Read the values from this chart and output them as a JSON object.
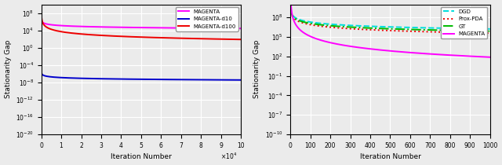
{
  "subplot1": {
    "xlabel": "Iteration Number",
    "ylabel": "Stationarity Gap",
    "xlim": [
      0,
      100000
    ],
    "ylim_log": [
      -20,
      10
    ],
    "xticks": [
      0,
      10000,
      20000,
      30000,
      40000,
      50000,
      60000,
      70000,
      80000,
      90000,
      100000
    ],
    "xtick_labels": [
      "0",
      "1",
      "2",
      "3",
      "4",
      "5",
      "6",
      "7",
      "8",
      "9",
      "10"
    ],
    "lines": [
      {
        "label": "MAGENTA",
        "color": "#FF00FF",
        "lw": 1.4,
        "A": 50000000.0,
        "alpha": 0.65,
        "floor": 3e-06
      },
      {
        "label": "MAGENTA-d10",
        "color": "#0000CC",
        "lw": 1.4,
        "A": 2e-05,
        "alpha": 0.55,
        "floor": 4e-11
      },
      {
        "label": "MAGENTA-d100",
        "color": "#EE0000",
        "lw": 1.4,
        "A": 80000000000.0,
        "alpha": 1.8,
        "floor": 3e-16
      }
    ]
  },
  "subplot2": {
    "xlabel": "Iteration Number",
    "ylabel": "Stationarity Gap",
    "xlim": [
      0,
      1000
    ],
    "ylim_log": [
      -10,
      10
    ],
    "xticks": [
      0,
      100,
      200,
      300,
      400,
      500,
      600,
      700,
      800,
      900,
      1000
    ],
    "lines": [
      {
        "label": "DGD",
        "color": "#00DDDD",
        "lw": 1.4,
        "ls": "--",
        "A": 3000000000.0,
        "alpha": 1.1,
        "floor": 150000.0
      },
      {
        "label": "Prox-PDA",
        "color": "#EE0000",
        "lw": 1.4,
        "ls": "dotted",
        "A": 3000000000.0,
        "alpha": 1.3,
        "floor": 10
      },
      {
        "label": "GT",
        "color": "#00BB00",
        "lw": 1.4,
        "ls": "-.",
        "A": 3000000000.0,
        "alpha": 1.2,
        "floor": 180
      },
      {
        "label": "MAGENTA",
        "color": "#FF00FF",
        "lw": 1.4,
        "ls": "-",
        "A": 300000000000.0,
        "alpha": 3.2,
        "floor": 1e-10
      }
    ]
  },
  "bg": "#ebebeb",
  "grid_color": "#ffffff",
  "fs": 6.5
}
